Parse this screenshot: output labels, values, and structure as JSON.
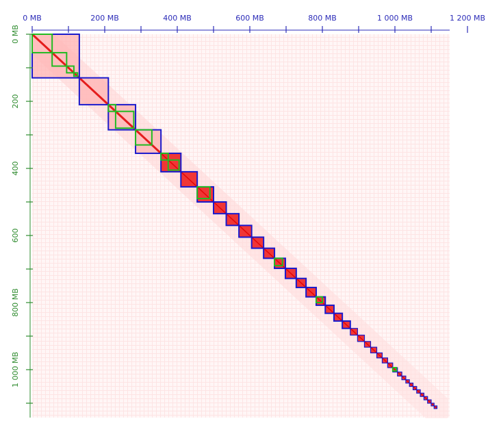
{
  "chart_data": {
    "type": "heatmap",
    "x_axis": {
      "position": "top",
      "unit": "MB",
      "ticks": [
        {
          "value": 0,
          "label": "0 MB"
        },
        {
          "value": 200,
          "label": "200 MB"
        },
        {
          "value": 400,
          "label": "400 MB"
        },
        {
          "value": 600,
          "label": "600 MB"
        },
        {
          "value": 800,
          "label": "800 MB"
        },
        {
          "value": 1000,
          "label": "1 000 MB"
        },
        {
          "value": 1200,
          "label": "1 200 MB"
        }
      ],
      "minor_ticks": [
        100,
        300,
        500,
        700,
        900,
        1100
      ]
    },
    "y_axis": {
      "position": "left",
      "unit": "MB",
      "ticks": [
        {
          "value": 0,
          "label": "0 MB"
        },
        {
          "value": 200,
          "label": "200"
        },
        {
          "value": 400,
          "label": "400"
        },
        {
          "value": 600,
          "label": "600"
        },
        {
          "value": 800,
          "label": "800 MB"
        },
        {
          "value": 1000,
          "label": "1 000 MB"
        }
      ],
      "minor_ticks": [
        100,
        300,
        500,
        700,
        900,
        1100
      ]
    },
    "genome_length_mb": 1145,
    "chromosome_blocks_mb": [
      [
        0,
        130
      ],
      [
        130,
        210
      ],
      [
        210,
        285
      ],
      [
        285,
        355
      ],
      [
        355,
        410
      ],
      [
        410,
        455
      ],
      [
        455,
        500
      ],
      [
        500,
        535
      ],
      [
        535,
        570
      ],
      [
        570,
        605
      ],
      [
        605,
        638
      ],
      [
        638,
        668
      ],
      [
        668,
        698
      ],
      [
        698,
        728
      ],
      [
        728,
        755
      ],
      [
        755,
        783
      ],
      [
        783,
        808
      ],
      [
        808,
        832
      ],
      [
        832,
        855
      ],
      [
        855,
        877
      ],
      [
        877,
        897
      ],
      [
        897,
        916
      ],
      [
        916,
        933
      ],
      [
        933,
        950
      ],
      [
        950,
        965
      ],
      [
        965,
        980
      ],
      [
        980,
        994
      ],
      [
        994,
        1007
      ],
      [
        1007,
        1019
      ],
      [
        1019,
        1030
      ],
      [
        1030,
        1040
      ],
      [
        1040,
        1050
      ],
      [
        1050,
        1060
      ],
      [
        1060,
        1070
      ],
      [
        1070,
        1080
      ],
      [
        1080,
        1090
      ],
      [
        1090,
        1100
      ],
      [
        1100,
        1108
      ],
      [
        1108,
        1116
      ]
    ],
    "subdomain_blocks_mb": [
      [
        0,
        55
      ],
      [
        55,
        95
      ],
      [
        95,
        115
      ],
      [
        115,
        125
      ],
      [
        210,
        230
      ],
      [
        230,
        280
      ],
      [
        285,
        330
      ],
      [
        355,
        375
      ],
      [
        375,
        405
      ],
      [
        455,
        490
      ],
      [
        668,
        690
      ],
      [
        783,
        800
      ],
      [
        994,
        1004
      ]
    ],
    "colors": {
      "contact_low": "#ffffff",
      "contact_mid": "#ffd6d6",
      "contact_high": "#ff0000",
      "chromosome_outline": "#1a1acc",
      "subdomain_outline": "#22bb22",
      "axis_top": "#2b2bb8",
      "axis_left": "#2e8b2e"
    }
  }
}
